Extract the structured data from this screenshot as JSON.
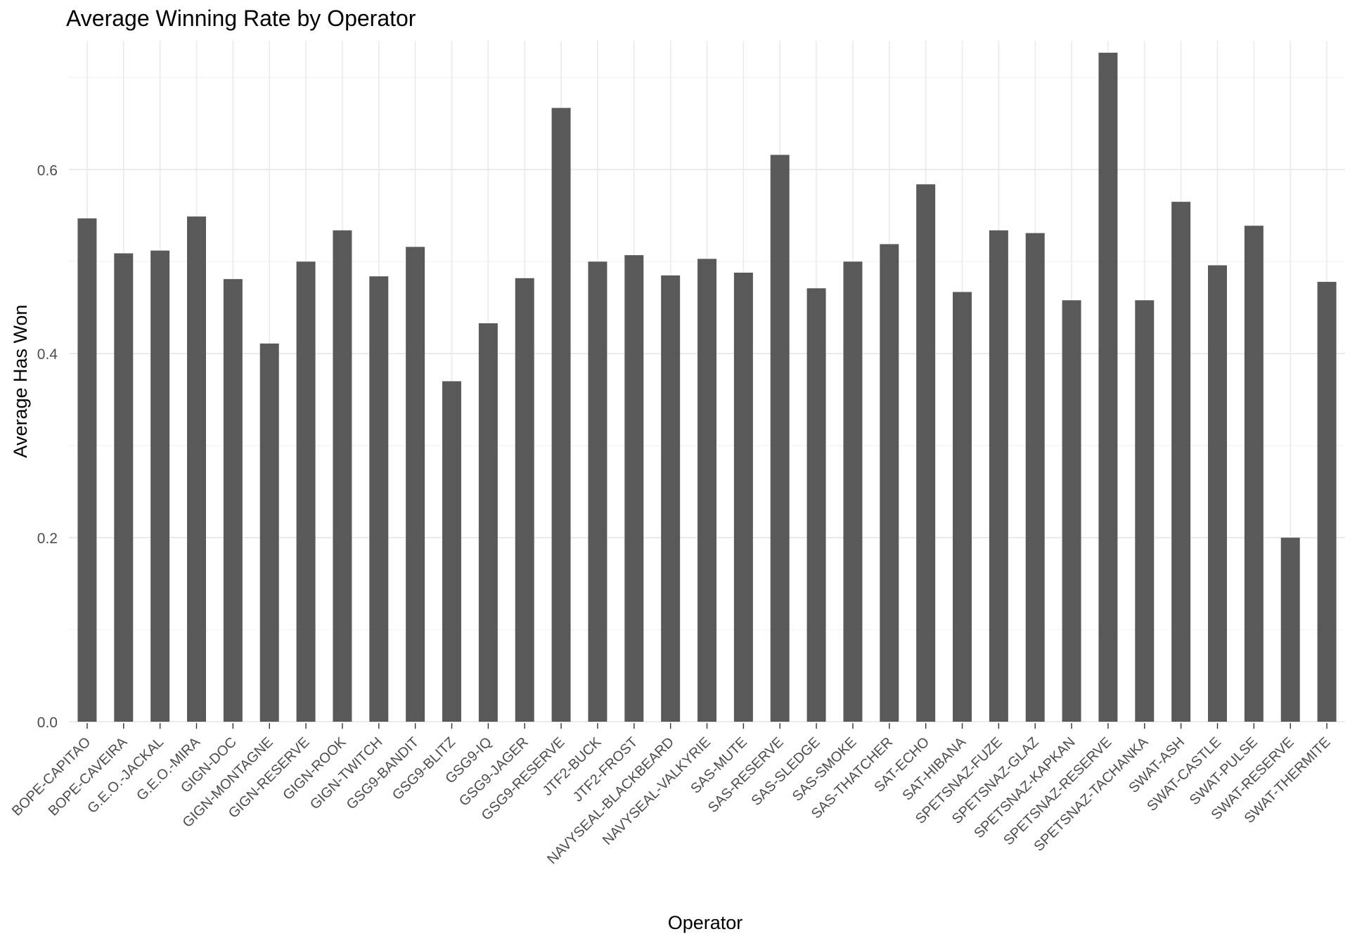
{
  "chart_data": {
    "type": "bar",
    "title": "Average Winning Rate by Operator",
    "xlabel": "Operator",
    "ylabel": "Average Has Won",
    "ylim": [
      0,
      0.74
    ],
    "yticks": [
      "0.0",
      "0.2",
      "0.4",
      "0.6"
    ],
    "grid": true,
    "legend": "none",
    "bar_color": "#595959",
    "categories": [
      "BOPE-CAPITAO",
      "BOPE-CAVEIRA",
      "G.E.O.-JACKAL",
      "G.E.O.-MIRA",
      "GIGN-DOC",
      "GIGN-MONTAGNE",
      "GIGN-RESERVE",
      "GIGN-ROOK",
      "GIGN-TWITCH",
      "GSG9-BANDIT",
      "GSG9-BLITZ",
      "GSG9-IQ",
      "GSG9-JAGER",
      "GSG9-RESERVE",
      "JTF2-BUCK",
      "JTF2-FROST",
      "NAVYSEAL-BLACKBEARD",
      "NAVYSEAL-VALKYRIE",
      "SAS-MUTE",
      "SAS-RESERVE",
      "SAS-SLEDGE",
      "SAS-SMOKE",
      "SAS-THATCHER",
      "SAT-ECHO",
      "SAT-HIBANA",
      "SPETSNAZ-FUZE",
      "SPETSNAZ-GLAZ",
      "SPETSNAZ-KAPKAN",
      "SPETSNAZ-RESERVE",
      "SPETSNAZ-TACHANKA",
      "SWAT-ASH",
      "SWAT-CASTLE",
      "SWAT-PULSE",
      "SWAT-RESERVE",
      "SWAT-THERMITE"
    ],
    "values": [
      0.547,
      0.509,
      0.512,
      0.549,
      0.481,
      0.411,
      0.5,
      0.534,
      0.484,
      0.516,
      0.37,
      0.433,
      0.482,
      0.667,
      0.5,
      0.507,
      0.485,
      0.503,
      0.488,
      0.616,
      0.471,
      0.5,
      0.519,
      0.584,
      0.467,
      0.534,
      0.531,
      0.458,
      0.727,
      0.458,
      0.565,
      0.496,
      0.539,
      0.2,
      0.478
    ]
  }
}
